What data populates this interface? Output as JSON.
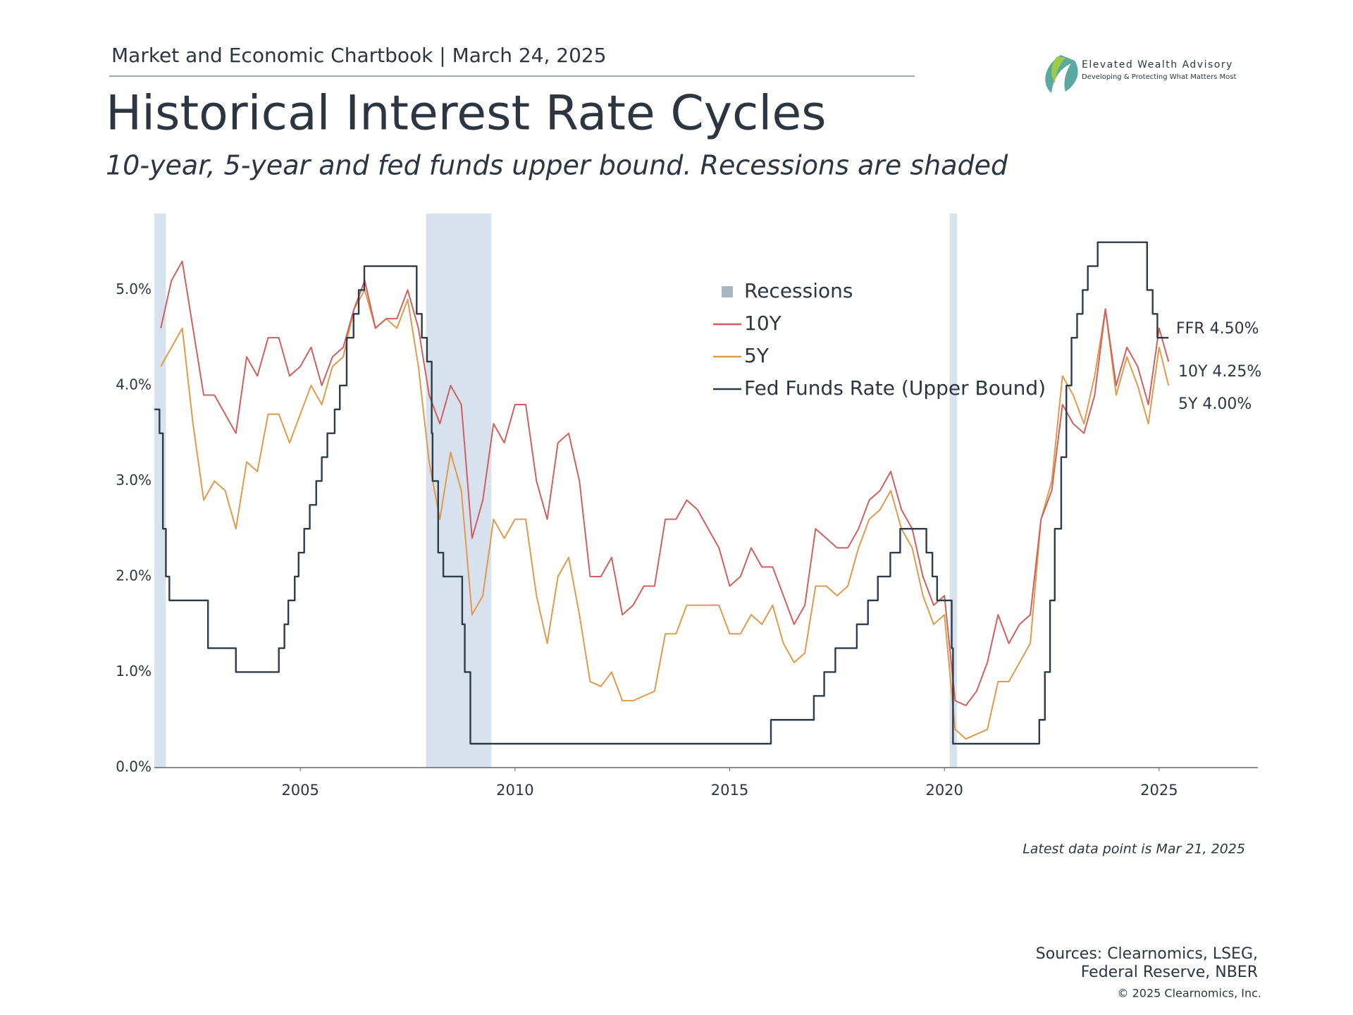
{
  "header": {
    "chartbook": "Market and Economic Chartbook | March 24, 2025",
    "logo_name": "Elevated Wealth Advisory",
    "logo_tagline": "Developing & Protecting What Matters Most"
  },
  "chart_data": {
    "type": "line",
    "title": "Historical Interest Rate Cycles",
    "subtitle": "10-year, 5-year and fed funds upper bound. Recessions are shaded",
    "x": [
      2001.75,
      2002.0,
      2002.25,
      2002.5,
      2002.75,
      2003.0,
      2003.25,
      2003.5,
      2003.75,
      2004.0,
      2004.25,
      2004.5,
      2004.75,
      2005.0,
      2005.25,
      2005.5,
      2005.75,
      2006.0,
      2006.25,
      2006.5,
      2006.75,
      2007.0,
      2007.25,
      2007.5,
      2007.75,
      2008.0,
      2008.25,
      2008.5,
      2008.75,
      2009.0,
      2009.25,
      2009.5,
      2009.75,
      2010.0,
      2010.25,
      2010.5,
      2010.75,
      2011.0,
      2011.25,
      2011.5,
      2011.75,
      2012.0,
      2012.25,
      2012.5,
      2012.75,
      2013.0,
      2013.25,
      2013.5,
      2013.75,
      2014.0,
      2014.25,
      2014.5,
      2014.75,
      2015.0,
      2015.25,
      2015.5,
      2015.75,
      2016.0,
      2016.25,
      2016.5,
      2016.75,
      2017.0,
      2017.25,
      2017.5,
      2017.75,
      2018.0,
      2018.25,
      2018.5,
      2018.75,
      2019.0,
      2019.25,
      2019.5,
      2019.75,
      2020.0,
      2020.25,
      2020.5,
      2020.75,
      2021.0,
      2021.25,
      2021.5,
      2021.75,
      2022.0,
      2022.25,
      2022.5,
      2022.75,
      2023.0,
      2023.25,
      2023.5,
      2023.75,
      2024.0,
      2024.25,
      2024.5,
      2024.75,
      2025.0,
      2025.22
    ],
    "series": [
      {
        "name": "10Y",
        "color": "#d0605e",
        "end_label": "10Y 4.25%",
        "values": [
          4.6,
          5.1,
          5.3,
          4.6,
          3.9,
          3.9,
          3.7,
          3.5,
          4.3,
          4.1,
          4.5,
          4.5,
          4.1,
          4.2,
          4.4,
          4.0,
          4.3,
          4.4,
          4.8,
          5.1,
          4.6,
          4.7,
          4.7,
          5.0,
          4.6,
          3.9,
          3.6,
          4.0,
          3.8,
          2.4,
          2.8,
          3.6,
          3.4,
          3.8,
          3.8,
          3.0,
          2.6,
          3.4,
          3.5,
          3.0,
          2.0,
          2.0,
          2.2,
          1.6,
          1.7,
          1.9,
          1.9,
          2.6,
          2.6,
          2.8,
          2.7,
          2.5,
          2.3,
          1.9,
          2.0,
          2.3,
          2.1,
          2.1,
          1.8,
          1.5,
          1.7,
          2.5,
          2.4,
          2.3,
          2.3,
          2.5,
          2.8,
          2.9,
          3.1,
          2.7,
          2.5,
          2.0,
          1.7,
          1.8,
          0.7,
          0.65,
          0.8,
          1.1,
          1.6,
          1.3,
          1.5,
          1.6,
          2.6,
          2.9,
          3.8,
          3.6,
          3.5,
          3.9,
          4.8,
          4.0,
          4.4,
          4.2,
          3.8,
          4.6,
          4.25
        ]
      },
      {
        "name": "5Y",
        "color": "#e09a4c",
        "end_label": "5Y 4.00%",
        "values": [
          4.2,
          4.4,
          4.6,
          3.6,
          2.8,
          3.0,
          2.9,
          2.5,
          3.2,
          3.1,
          3.7,
          3.7,
          3.4,
          3.7,
          4.0,
          3.8,
          4.2,
          4.3,
          4.8,
          5.0,
          4.6,
          4.7,
          4.6,
          4.9,
          4.2,
          3.2,
          2.6,
          3.3,
          2.9,
          1.6,
          1.8,
          2.6,
          2.4,
          2.6,
          2.6,
          1.8,
          1.3,
          2.0,
          2.2,
          1.6,
          0.9,
          0.85,
          1.0,
          0.7,
          0.7,
          0.75,
          0.8,
          1.4,
          1.4,
          1.7,
          1.7,
          1.7,
          1.7,
          1.4,
          1.4,
          1.6,
          1.5,
          1.7,
          1.3,
          1.1,
          1.2,
          1.9,
          1.9,
          1.8,
          1.9,
          2.3,
          2.6,
          2.7,
          2.9,
          2.5,
          2.3,
          1.8,
          1.5,
          1.6,
          0.4,
          0.3,
          0.35,
          0.4,
          0.9,
          0.9,
          1.1,
          1.3,
          2.6,
          3.0,
          4.1,
          3.9,
          3.6,
          4.1,
          4.8,
          3.9,
          4.3,
          4.0,
          3.6,
          4.4,
          4.0
        ]
      },
      {
        "name": "Fed Funds Rate (Upper Bound)",
        "color": "#2e3b48",
        "end_label": "FFR 4.50%",
        "line_shape": "hv",
        "x": [
          2001.6,
          2001.72,
          2001.8,
          2001.87,
          2001.95,
          2002.85,
          2003.5,
          2004.5,
          2004.63,
          2004.72,
          2004.87,
          2004.96,
          2005.09,
          2005.22,
          2005.37,
          2005.5,
          2005.63,
          2005.8,
          2005.92,
          2006.08,
          2006.24,
          2006.36,
          2006.49,
          2007.71,
          2007.83,
          2007.95,
          2008.06,
          2008.08,
          2008.21,
          2008.33,
          2008.77,
          2008.83,
          2008.96,
          2015.96,
          2016.96,
          2017.2,
          2017.46,
          2017.96,
          2018.22,
          2018.45,
          2018.74,
          2018.97,
          2019.58,
          2019.72,
          2019.83,
          2020.17,
          2020.2,
          2022.21,
          2022.34,
          2022.46,
          2022.57,
          2022.72,
          2022.84,
          2022.96,
          2023.09,
          2023.22,
          2023.34,
          2023.57,
          2024.72,
          2024.85,
          2024.96,
          2025.22
        ],
        "values": [
          3.75,
          3.5,
          2.5,
          2.0,
          1.75,
          1.25,
          1.0,
          1.25,
          1.5,
          1.75,
          2.0,
          2.25,
          2.5,
          2.75,
          3.0,
          3.25,
          3.5,
          3.75,
          4.0,
          4.5,
          4.75,
          5.0,
          5.25,
          4.75,
          4.5,
          4.25,
          3.5,
          3.0,
          2.25,
          2.0,
          1.5,
          1.0,
          0.25,
          0.5,
          0.75,
          1.0,
          1.25,
          1.5,
          1.75,
          2.0,
          2.25,
          2.5,
          2.25,
          2.0,
          1.75,
          1.25,
          0.25,
          0.5,
          1.0,
          1.75,
          2.5,
          3.25,
          4.0,
          4.5,
          4.75,
          5.0,
          5.25,
          5.5,
          5.0,
          4.75,
          4.5,
          4.5
        ]
      }
    ],
    "recession_label": "Recessions",
    "recession_color": "#d7e2ee",
    "recession_legend_color": "#a9b6c2",
    "recessions": [
      {
        "start": 2001.21,
        "end": 2001.87
      },
      {
        "start": 2007.93,
        "end": 2009.45
      },
      {
        "start": 2020.12,
        "end": 2020.29
      }
    ],
    "xlim": [
      2001.6,
      2027.3
    ],
    "xticks": [
      2005,
      2010,
      2015,
      2020,
      2025
    ],
    "ylim": [
      0,
      5.8
    ],
    "yticks": [
      {
        "value": 0,
        "label": "0.0%"
      },
      {
        "value": 1,
        "label": "1.0%"
      },
      {
        "value": 2,
        "label": "2.0%"
      },
      {
        "value": 3,
        "label": "3.0%"
      },
      {
        "value": 4,
        "label": "4.0%"
      },
      {
        "value": 5,
        "label": "5.0%"
      }
    ],
    "grid": false,
    "note": "Latest data point is Mar 21, 2025"
  },
  "footer": {
    "sources_1": "Sources: Clearnomics, LSEG,",
    "sources_2": "Federal Reserve, NBER",
    "copyright": "© 2025 Clearnomics, Inc."
  }
}
